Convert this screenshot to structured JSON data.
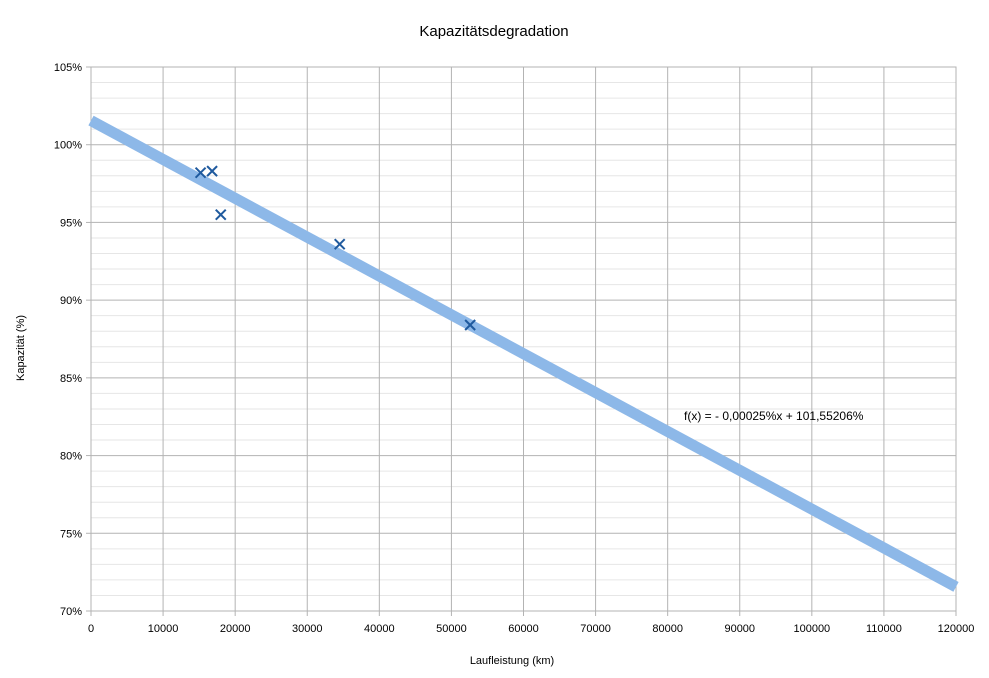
{
  "chart_data": {
    "type": "scatter",
    "title": "Kapazitätsdegradation",
    "xlabel": "Laufleistung (km)",
    "ylabel": "Kapazität (%)",
    "xlim": [
      0,
      120000
    ],
    "ylim": [
      70,
      105
    ],
    "grid": true,
    "x_ticks": [
      0,
      10000,
      20000,
      30000,
      40000,
      50000,
      60000,
      70000,
      80000,
      90000,
      100000,
      110000,
      120000
    ],
    "x_tick_labels": [
      "0",
      "10000",
      "20000",
      "30000",
      "40000",
      "50000",
      "60000",
      "70000",
      "80000",
      "90000",
      "100000",
      "110000",
      "120000"
    ],
    "y_ticks": [
      70,
      75,
      80,
      85,
      90,
      95,
      100,
      105
    ],
    "y_tick_labels": [
      "70%",
      "75%",
      "80%",
      "85%",
      "90%",
      "95%",
      "100%",
      "105%"
    ],
    "series": [
      {
        "marker": "x",
        "color": "#1f5a9e",
        "points": [
          {
            "x": 15200,
            "y": 98.2
          },
          {
            "x": 16800,
            "y": 98.3
          },
          {
            "x": 18000,
            "y": 95.5
          },
          {
            "x": 34500,
            "y": 93.6
          },
          {
            "x": 52600,
            "y": 88.4
          }
        ]
      }
    ],
    "trendline": {
      "type": "linear",
      "slope": -0.00025,
      "intercept": 101.55206,
      "color": "#8db8e8",
      "equation_label": "f(x) =  - 0,00025%x + 101,55206%"
    }
  }
}
